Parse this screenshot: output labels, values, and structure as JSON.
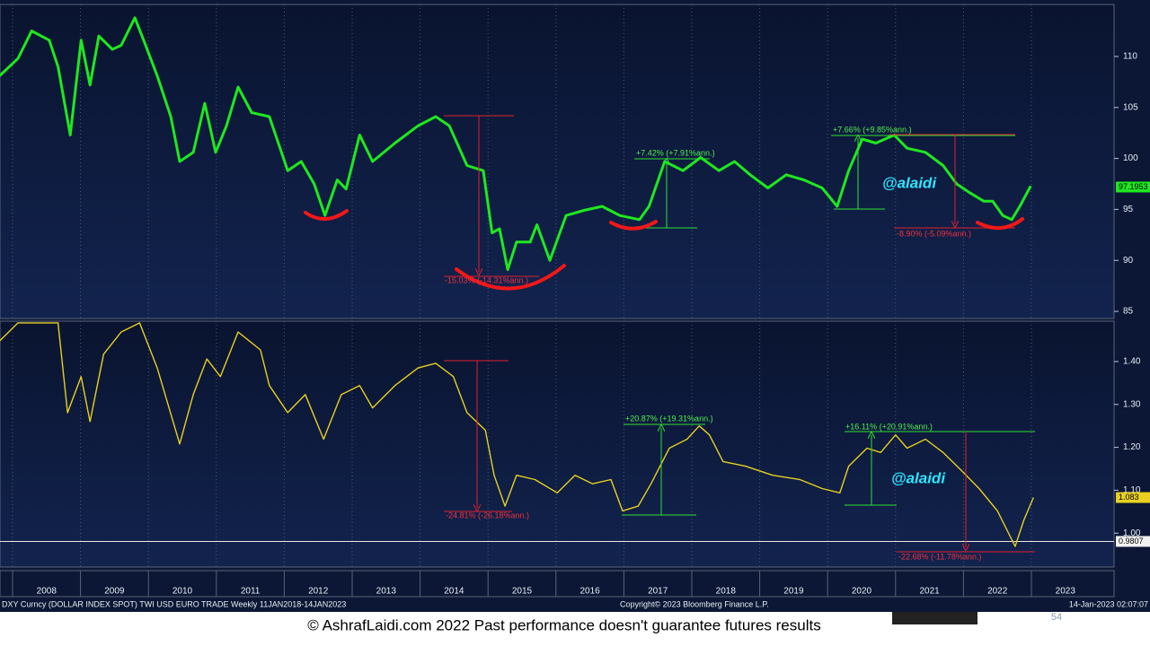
{
  "chart_data": [
    {
      "type": "line",
      "color": "#1fe81f",
      "x": [
        2007.81,
        2008.08,
        2008.28,
        2008.54,
        2008.67,
        2008.85,
        2009.01,
        2009.14,
        2009.27,
        2009.47,
        2009.6,
        2009.8,
        2009.93,
        2010.13,
        2010.33,
        2010.46,
        2010.66,
        2010.83,
        2010.99,
        2011.15,
        2011.32,
        2011.52,
        2011.78,
        2012.05,
        2012.25,
        2012.44,
        2012.6,
        2012.78,
        2012.91,
        2013.11,
        2013.3,
        2013.63,
        2013.97,
        2014.23,
        2014.43,
        2014.69,
        2014.93,
        2015.06,
        2015.17,
        2015.29,
        2015.42,
        2015.62,
        2015.72,
        2015.91,
        2016.15,
        2016.41,
        2016.68,
        2016.94,
        2017.23,
        2017.37,
        2017.6,
        2017.87,
        2018.13,
        2018.4,
        2018.63,
        2018.86,
        2019.12,
        2019.39,
        2019.65,
        2019.92,
        2020.14,
        2020.31,
        2020.51,
        2020.71,
        2020.98,
        2021.17,
        2021.44,
        2021.7,
        2021.9,
        2022.1,
        2022.3,
        2022.43,
        2022.58,
        2022.71,
        2022.83,
        2022.99
      ],
      "values": [
        108.1,
        109.8,
        112.5,
        111.6,
        109,
        102.3,
        111.6,
        107.2,
        112,
        110.7,
        111.1,
        113.8,
        111.6,
        108.1,
        104.1,
        99.7,
        100.6,
        105.4,
        100.6,
        103.2,
        107,
        104.5,
        104.1,
        98.8,
        99.7,
        97.5,
        94.4,
        97.9,
        97,
        102.3,
        99.7,
        101.5,
        103.2,
        104.1,
        103.2,
        99.3,
        98.8,
        92.7,
        93.1,
        89.1,
        91.8,
        91.8,
        93.5,
        90,
        94.4,
        94.9,
        95.3,
        94.4,
        94,
        95.3,
        99.7,
        98.8,
        100.1,
        98.8,
        99.7,
        98.4,
        97.1,
        98.4,
        97.9,
        97.1,
        95.3,
        98.8,
        101.9,
        101.5,
        102.3,
        101,
        100.6,
        99.3,
        97.5,
        96.6,
        95.8,
        95.8,
        94.4,
        94,
        95.3,
        97.3
      ],
      "xlim": [
        2007.815,
        2024.217
      ],
      "ylim": [
        84.3,
        115.1
      ],
      "yticks": [
        85,
        90,
        95,
        100,
        105,
        110
      ],
      "last_value": 97.1953,
      "annotations": [
        "+7.42% (+7.91%ann.)",
        "-15.03% (-14.31%ann.)",
        "+7.66% (+9.85%ann.)",
        "-8.90% (-5.09%ann.)",
        "@alaidi"
      ]
    },
    {
      "type": "line",
      "color": "#e8d020",
      "x": [
        2007.81,
        2008.08,
        2008.67,
        2008.81,
        2009.01,
        2009.14,
        2009.34,
        2009.6,
        2009.87,
        2010.13,
        2010.46,
        2010.66,
        2010.86,
        2011.06,
        2011.32,
        2011.65,
        2011.78,
        2012.05,
        2012.31,
        2012.58,
        2012.84,
        2013.11,
        2013.3,
        2013.63,
        2013.97,
        2014.23,
        2014.49,
        2014.69,
        2014.96,
        2015.09,
        2015.25,
        2015.42,
        2015.69,
        2016.02,
        2016.28,
        2016.54,
        2016.81,
        2016.98,
        2017.21,
        2017.4,
        2017.67,
        2017.93,
        2018.11,
        2018.26,
        2018.46,
        2018.79,
        2019.19,
        2019.59,
        2019.92,
        2020.18,
        2020.31,
        2020.58,
        2020.78,
        2021.0,
        2021.17,
        2021.44,
        2021.7,
        2021.97,
        2022.23,
        2022.5,
        2022.76,
        2022.89,
        2023.03
      ],
      "values": [
        1.448,
        1.49,
        1.49,
        1.281,
        1.365,
        1.26,
        1.417,
        1.469,
        1.49,
        1.385,
        1.208,
        1.323,
        1.406,
        1.365,
        1.469,
        1.427,
        1.344,
        1.281,
        1.323,
        1.219,
        1.323,
        1.344,
        1.292,
        1.344,
        1.385,
        1.396,
        1.365,
        1.281,
        1.24,
        1.135,
        1.063,
        1.135,
        1.125,
        1.094,
        1.135,
        1.115,
        1.125,
        1.052,
        1.063,
        1.115,
        1.198,
        1.219,
        1.25,
        1.229,
        1.167,
        1.156,
        1.135,
        1.125,
        1.104,
        1.094,
        1.156,
        1.198,
        1.188,
        1.229,
        1.198,
        1.219,
        1.188,
        1.146,
        1.104,
        1.052,
        0.969,
        1.031,
        1.083
      ],
      "xlim": [
        2007.815,
        2024.217
      ],
      "ylim": [
        0.921,
        1.494
      ],
      "yticks": [
        {
          "value": 1.0,
          "label": "1.00"
        },
        {
          "value": 1.1,
          "label": "1.10"
        },
        {
          "value": 1.2,
          "label": "1.20"
        },
        {
          "value": 1.3,
          "label": "1.30"
        },
        {
          "value": 1.4,
          "label": "1.40"
        }
      ],
      "xticks": [
        2008,
        2009,
        2010,
        2011,
        2012,
        2013,
        2014,
        2015,
        2016,
        2017,
        2018,
        2019,
        2020,
        2021,
        2022,
        2023
      ],
      "last_value": 1.083,
      "reference_line": 0.9807,
      "annotations": [
        "+20.87% (+19.31%ann.)",
        "-24.81% (-26.18%ann.)",
        "+16.11% (+20.91%ann.)",
        "-22.68% (-11.78%ann.)",
        "@alaidi"
      ]
    }
  ],
  "footer": {
    "series_info": "DXY Curncy (DOLLAR INDEX SPOT) TWI USD EURO TRADE  Weekly 11JAN2018-14JAN2023",
    "copyright": "Copyright© 2023 Bloomberg Finance L.P.",
    "timestamp": "14-Jan-2023 02:07:07",
    "disclaimer": "© AshrafLaidi.com 2022 Past performance doesn't guarantee futures results",
    "page_number": "54"
  }
}
